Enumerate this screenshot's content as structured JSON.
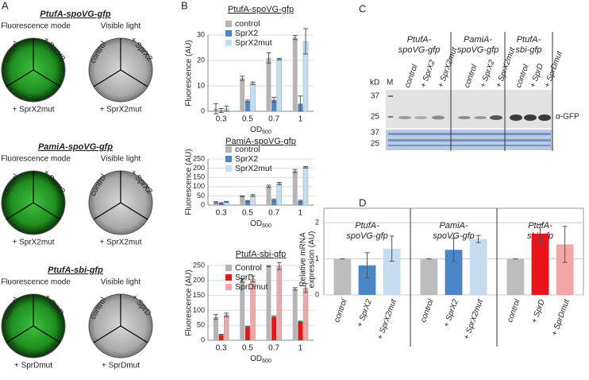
{
  "panel_labels": [
    "A",
    "B",
    "C",
    "D"
  ],
  "plates": [
    {
      "title": "PtufA-spoVG-gfp",
      "left_mode": "Fluorescence mode",
      "right_mode": "Visible light",
      "left_labels": [
        "control",
        "+ SprX2",
        "+ SprX2mut"
      ],
      "right_labels": [
        "control",
        "+ SprX2",
        "+ SprX2mut"
      ]
    },
    {
      "title": "PamiA-spoVG-gfp",
      "left_mode": "Fluorescence mode",
      "right_mode": "Visible light",
      "left_labels": [
        "control",
        "+ SprX2",
        "+ SprX2mut"
      ],
      "right_labels": [
        "control",
        "+ SprX2",
        "+ SprX2mut"
      ]
    },
    {
      "title": "PtufA-sbi-gfp",
      "left_mode": "Fluorescence mode",
      "right_mode": "Visible light",
      "left_labels": [
        "control",
        "+ SprD",
        "+ SprDmut"
      ],
      "right_labels": [
        "control",
        "+ SprD",
        "+ SprDmut"
      ]
    }
  ],
  "chart_data": [
    {
      "type": "bar",
      "title": "PtufA-spoVG-gfp",
      "ylabel": "Fluorescence (AU)",
      "xlabel": "OD",
      "xlabel_sub": "600",
      "categories": [
        "0.3",
        "0.5",
        "0.7",
        "1"
      ],
      "ylim": [
        0,
        30
      ],
      "yticks": [
        0,
        10,
        20,
        30
      ],
      "grid": true,
      "legend": "upper left",
      "series": [
        {
          "name": "control",
          "color": "#b4b4b4",
          "values": [
            1,
            13,
            21,
            29
          ],
          "errors": [
            2,
            0.8,
            2,
            0.8
          ]
        },
        {
          "name": "SprX2",
          "color": "#4a86c8",
          "values": [
            0.3,
            4,
            4.5,
            3
          ],
          "errors": [
            0.8,
            0.4,
            1,
            3
          ]
        },
        {
          "name": "SprX2mut",
          "color": "#c6dcf0",
          "values": [
            1,
            11,
            20.5,
            27.5
          ],
          "errors": [
            1,
            0.5,
            0.3,
            5
          ]
        }
      ]
    },
    {
      "type": "bar",
      "title": "PamiA-spoVG-gfp",
      "ylabel": "Fluorescence (AU)",
      "xlabel": "OD",
      "xlabel_sub": "600",
      "categories": [
        "0.3",
        "0.5",
        "0.7",
        "1"
      ],
      "ylim": [
        0,
        250
      ],
      "yticks": [
        0,
        50,
        100,
        150,
        200,
        250
      ],
      "grid": true,
      "legend": "upper left",
      "series": [
        {
          "name": "control",
          "color": "#b4b4b4",
          "values": [
            15,
            48,
            102,
            185
          ],
          "errors": [
            4,
            2,
            6,
            8
          ]
        },
        {
          "name": "SprX2",
          "color": "#4a86c8",
          "values": [
            10,
            22,
            28,
            22
          ],
          "errors": [
            3,
            3,
            5,
            4
          ]
        },
        {
          "name": "SprX2mut",
          "color": "#c6dcf0",
          "values": [
            18,
            52,
            117,
            205
          ],
          "errors": [
            2,
            5,
            6,
            4
          ]
        }
      ]
    },
    {
      "type": "bar",
      "title": "PtufA-sbi-gfp",
      "ylabel": "Fluorescence (AU)",
      "xlabel": "OD",
      "xlabel_sub": "600",
      "categories": [
        "0.3",
        "0.5",
        "0.7",
        "1"
      ],
      "ylim": [
        0,
        250
      ],
      "yticks": [
        0,
        50,
        100,
        150,
        200,
        250
      ],
      "grid": true,
      "legend": "upper left",
      "series": [
        {
          "name": "Control",
          "color": "#b4b4b4",
          "values": [
            78,
            200,
            248,
            172
          ],
          "errors": [
            8,
            6,
            2,
            4
          ]
        },
        {
          "name": "SprD",
          "color": "#e8141a",
          "values": [
            18,
            45,
            78,
            62
          ],
          "errors": [
            2,
            2,
            3,
            2
          ]
        },
        {
          "name": "SprDmut",
          "color": "#f4a6a6",
          "values": [
            85,
            205,
            248,
            175
          ],
          "errors": [
            6,
            10,
            12,
            15
          ]
        }
      ]
    },
    {
      "type": "grouped-bar",
      "ylabel": [
        "Relative mRNA",
        "expression (AU)"
      ],
      "group_titles": [
        [
          "PtufA-",
          "spoVG-gfp"
        ],
        [
          "PamiA-",
          "spoVG-gfp"
        ],
        [
          "PtufA-",
          "sbi-gfp"
        ]
      ],
      "categories": [
        "control",
        "+ SprX2",
        "+ SprX2mut",
        "control",
        "+ SprX2",
        "+ SprX2mut",
        "control",
        "+ SprD",
        "+ SprDmut"
      ],
      "values": [
        1,
        0.82,
        1.28,
        1,
        1.25,
        1.55,
        1,
        1.7,
        1.4
      ],
      "errors": [
        0,
        0.35,
        0.35,
        0,
        0.32,
        0.1,
        0,
        0.25,
        0.5
      ],
      "colors": [
        "#bdbdbd",
        "#4a86c8",
        "#c6dcf0",
        "#bdbdbd",
        "#4a86c8",
        "#c6dcf0",
        "#bdbdbd",
        "#e8141a",
        "#f4a6a6"
      ],
      "ylim": [
        0,
        2.4
      ],
      "yticks": [
        0,
        1,
        2
      ],
      "grid": true
    }
  ],
  "blot": {
    "groups": [
      [
        "PtufA-",
        "spoVG-gfp"
      ],
      [
        "PamiA-",
        "spoVG-gfp"
      ],
      [
        "PtufA-",
        "sbi-gfp"
      ]
    ],
    "kd_label": "kD",
    "marker_label": "M",
    "lanes": [
      "control",
      "+ SprX2",
      "+ SprX2mut",
      "control",
      "+ SprX2",
      "+ SprX2mut",
      "control",
      "+ SprD",
      "+ SprDmut"
    ],
    "kd_marks": [
      37,
      25,
      37,
      25
    ],
    "antibody": "α-GFP"
  }
}
